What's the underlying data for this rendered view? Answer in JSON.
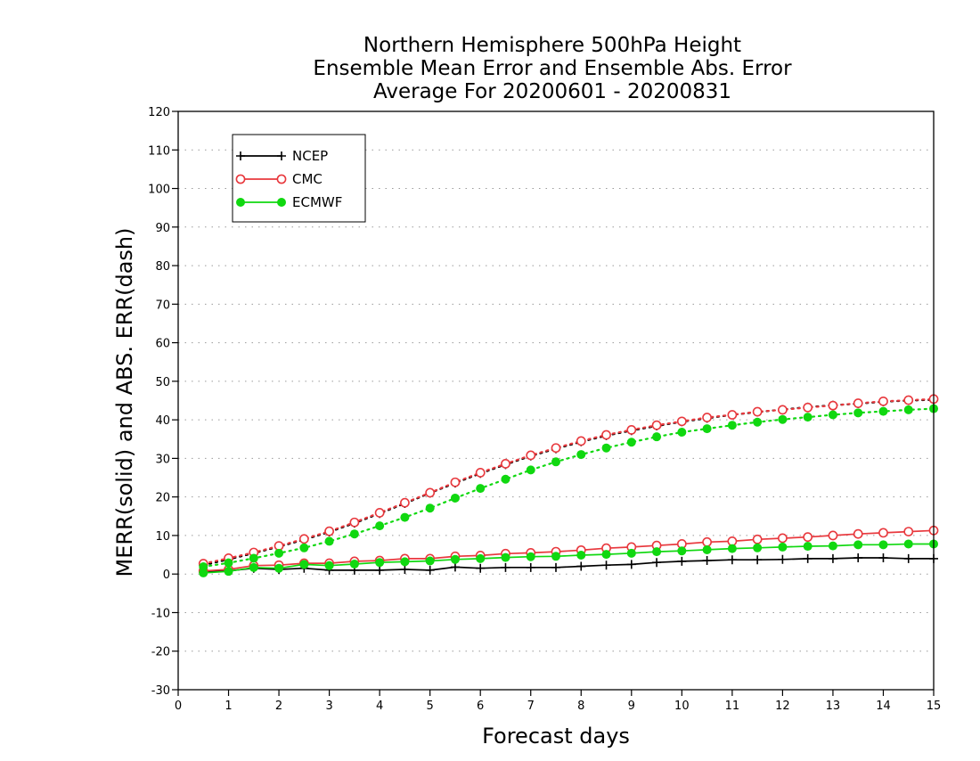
{
  "chart_data": {
    "type": "line",
    "title": [
      "Northern Hemisphere 500hPa Height",
      "Ensemble Mean Error and Ensemble Abs. Error",
      "Average For 20200601 - 20200831"
    ],
    "xlabel": "Forecast days",
    "ylabel": "MERR(solid) and ABS. ERR(dash)",
    "xlim": [
      0,
      15
    ],
    "ylim": [
      -30,
      120
    ],
    "xticks": [
      0,
      1,
      2,
      3,
      4,
      5,
      6,
      7,
      8,
      9,
      10,
      11,
      12,
      13,
      14,
      15
    ],
    "yticks": [
      -30,
      -20,
      -10,
      0,
      10,
      20,
      30,
      40,
      50,
      60,
      70,
      80,
      90,
      100,
      110,
      120
    ],
    "grid": "horizontal dotted",
    "legend_position": "top-left",
    "x": [
      0.5,
      1,
      1.5,
      2,
      2.5,
      3,
      3.5,
      4,
      4.5,
      5,
      5.5,
      6,
      6.5,
      7,
      7.5,
      8,
      8.5,
      9,
      9.5,
      10,
      10.5,
      11,
      11.5,
      12,
      12.5,
      13,
      13.5,
      14,
      14.5,
      15
    ],
    "series": [
      {
        "name": "NCEP",
        "color": "#000000",
        "marker": "plus",
        "mean_error": [
          0.5,
          0.8,
          1.5,
          1.2,
          1.5,
          1.0,
          1.0,
          1.0,
          1.2,
          1.0,
          1.8,
          1.5,
          1.7,
          1.7,
          1.7,
          2.0,
          2.3,
          2.5,
          3.0,
          3.3,
          3.5,
          3.7,
          3.7,
          3.8,
          4.0,
          4.0,
          4.2,
          4.2,
          4.0,
          4.0
        ],
        "abs_error": [
          2.3,
          3.8,
          5.4,
          7.1,
          8.9,
          10.9,
          13.2,
          15.7,
          18.3,
          21.0,
          23.6,
          26.1,
          28.4,
          30.6,
          32.5,
          34.3,
          35.9,
          37.2,
          38.4,
          39.5,
          40.4,
          41.3,
          42.0,
          42.7,
          43.3,
          43.8,
          44.2,
          44.7,
          45.0,
          45.2
        ]
      },
      {
        "name": "CMC",
        "color": "#e8383d",
        "marker": "open-circle",
        "mean_error": [
          0.8,
          1.2,
          2.2,
          2.3,
          2.8,
          2.8,
          3.3,
          3.5,
          4.0,
          4.0,
          4.6,
          4.8,
          5.3,
          5.5,
          5.8,
          6.2,
          6.7,
          7.0,
          7.4,
          7.8,
          8.3,
          8.5,
          9.0,
          9.3,
          9.6,
          10.0,
          10.4,
          10.7,
          11.0,
          11.3
        ],
        "abs_error": [
          2.7,
          4.1,
          5.6,
          7.3,
          9.1,
          11.1,
          13.4,
          15.9,
          18.5,
          21.1,
          23.8,
          26.3,
          28.6,
          30.8,
          32.7,
          34.5,
          36.1,
          37.4,
          38.6,
          39.6,
          40.6,
          41.3,
          42.1,
          42.6,
          43.2,
          43.7,
          44.3,
          44.8,
          45.1,
          45.4
        ]
      },
      {
        "name": "ECMWF",
        "color": "#10d810",
        "marker": "filled-circle",
        "mean_error": [
          0.3,
          0.7,
          1.7,
          1.5,
          2.5,
          2.2,
          2.6,
          3.0,
          3.2,
          3.4,
          3.8,
          4.0,
          4.3,
          4.5,
          4.6,
          4.9,
          5.1,
          5.4,
          5.8,
          6.0,
          6.3,
          6.6,
          6.8,
          7.0,
          7.2,
          7.3,
          7.6,
          7.6,
          7.8,
          7.8
        ],
        "abs_error": [
          1.9,
          2.9,
          4.1,
          5.4,
          6.8,
          8.5,
          10.4,
          12.5,
          14.7,
          17.1,
          19.7,
          22.2,
          24.6,
          27.0,
          29.1,
          31.0,
          32.7,
          34.2,
          35.6,
          36.8,
          37.7,
          38.6,
          39.4,
          40.1,
          40.7,
          41.3,
          41.8,
          42.2,
          42.6,
          42.9
        ]
      }
    ]
  }
}
